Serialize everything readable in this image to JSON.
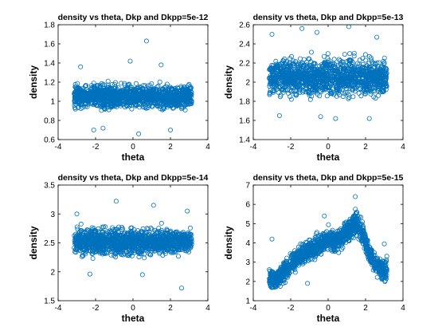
{
  "colors": {
    "marker": "#0072bd",
    "axis": "#000000",
    "background": "#ffffff"
  },
  "chart_data": [
    {
      "type": "scatter",
      "title": "density vs theta, Dkp and Dkpp=5e-12",
      "xlabel": "theta",
      "ylabel": "density",
      "xlim": [
        -4,
        4
      ],
      "ylim": [
        0.6,
        1.8
      ],
      "xticks": [
        "-4",
        "-2",
        "0",
        "2",
        "4"
      ],
      "yticks": [
        "0.6",
        "0.8",
        "1",
        "1.2",
        "1.4",
        "1.6",
        "1.8"
      ],
      "exponent_label": "",
      "series": [
        {
          "x_range": [
            -3.14,
            3.14
          ],
          "band_center": 1.05,
          "band_halfwidth": 0.2,
          "profile": []
        }
      ],
      "outliers": [
        [
          0.72,
          1.63
        ],
        [
          -0.15,
          1.42
        ],
        [
          -2.1,
          0.7
        ],
        [
          0.3,
          0.66
        ],
        [
          -1.6,
          0.72
        ],
        [
          2.0,
          0.7
        ],
        [
          -2.8,
          1.36
        ],
        [
          1.5,
          1.38
        ]
      ],
      "grid": false,
      "legend": "none"
    },
    {
      "type": "scatter",
      "title": "density vs theta, Dkp and Dkpp=5e-13",
      "xlabel": "theta",
      "ylabel": "density",
      "xlim": [
        -4,
        4
      ],
      "ylim": [
        1.4,
        2.6
      ],
      "xticks": [
        "-4",
        "-2",
        "0",
        "2",
        "4"
      ],
      "yticks": [
        "1.4",
        "1.6",
        "1.8",
        "2",
        "2.2",
        "2.4",
        "2.6"
      ],
      "exponent_label": "",
      "series": [
        {
          "x_range": [
            -3.14,
            3.14
          ],
          "band_center": 2.05,
          "band_halfwidth": 0.32,
          "profile": []
        }
      ],
      "outliers": [
        [
          1.1,
          2.58
        ],
        [
          -0.6,
          2.52
        ],
        [
          -3.0,
          2.5
        ],
        [
          -1.4,
          2.56
        ],
        [
          2.6,
          2.47
        ],
        [
          2.2,
          1.62
        ],
        [
          -2.6,
          1.65
        ],
        [
          0.4,
          1.62
        ],
        [
          -0.4,
          1.64
        ]
      ],
      "grid": false,
      "legend": "none"
    },
    {
      "type": "scatter",
      "title": "density vs theta, Dkp and Dkpp=5e-14",
      "xlabel": "theta",
      "ylabel": "density",
      "xlim": [
        -4,
        4
      ],
      "ylim": [
        1.5,
        3.5
      ],
      "xticks": [
        "-4",
        "-2",
        "0",
        "2",
        "4"
      ],
      "yticks": [
        "1.5",
        "2",
        "2.5",
        "3",
        "3.5"
      ],
      "exponent_label": "",
      "series": [
        {
          "x_range": [
            -3.14,
            3.14
          ],
          "band_center": 2.52,
          "band_halfwidth": 0.38,
          "profile": []
        }
      ],
      "outliers": [
        [
          -0.9,
          3.22
        ],
        [
          1.1,
          3.15
        ],
        [
          2.6,
          1.72
        ],
        [
          -2.3,
          1.96
        ],
        [
          0.5,
          1.95
        ],
        [
          2.9,
          3.05
        ],
        [
          -3.0,
          3.0
        ]
      ],
      "grid": false,
      "legend": "none"
    },
    {
      "type": "scatter",
      "title": "density vs theta, Dkp and Dkpp=5e-15",
      "xlabel": "theta",
      "ylabel": "density",
      "xlim": [
        -4,
        4
      ],
      "ylim": [
        1,
        7
      ],
      "xticks": [
        "-4",
        "-2",
        "0",
        "2",
        "4"
      ],
      "yticks": [
        "1",
        "2",
        "3",
        "4",
        "5",
        "6",
        "7"
      ],
      "exponent_label": "",
      "series": [
        {
          "x_range": [
            -3.14,
            3.14
          ],
          "band_center": 0,
          "band_halfwidth": 0,
          "profile": [
            [
              -3.14,
              1.5,
              3.0
            ],
            [
              -2.8,
              1.3,
              2.7
            ],
            [
              -2.4,
              1.6,
              3.3
            ],
            [
              -2.0,
              2.0,
              3.8
            ],
            [
              -1.6,
              2.3,
              4.2
            ],
            [
              -1.2,
              2.6,
              4.5
            ],
            [
              -0.8,
              2.8,
              4.6
            ],
            [
              -0.4,
              3.0,
              4.9
            ],
            [
              0.0,
              3.3,
              5.2
            ],
            [
              0.4,
              3.1,
              5.0
            ],
            [
              0.8,
              3.4,
              5.3
            ],
            [
              1.2,
              3.8,
              5.8
            ],
            [
              1.5,
              4.0,
              6.2
            ],
            [
              1.8,
              3.6,
              5.6
            ],
            [
              2.1,
              2.8,
              4.6
            ],
            [
              2.4,
              2.3,
              3.9
            ],
            [
              2.8,
              1.6,
              3.6
            ],
            [
              3.14,
              1.4,
              3.8
            ]
          ]
        }
      ],
      "outliers": [
        [
          1.45,
          6.4
        ],
        [
          -3.0,
          4.2
        ],
        [
          -0.2,
          5.4
        ],
        [
          3.0,
          3.95
        ],
        [
          -1.1,
          1.9
        ]
      ],
      "grid": false,
      "legend": "none"
    }
  ]
}
